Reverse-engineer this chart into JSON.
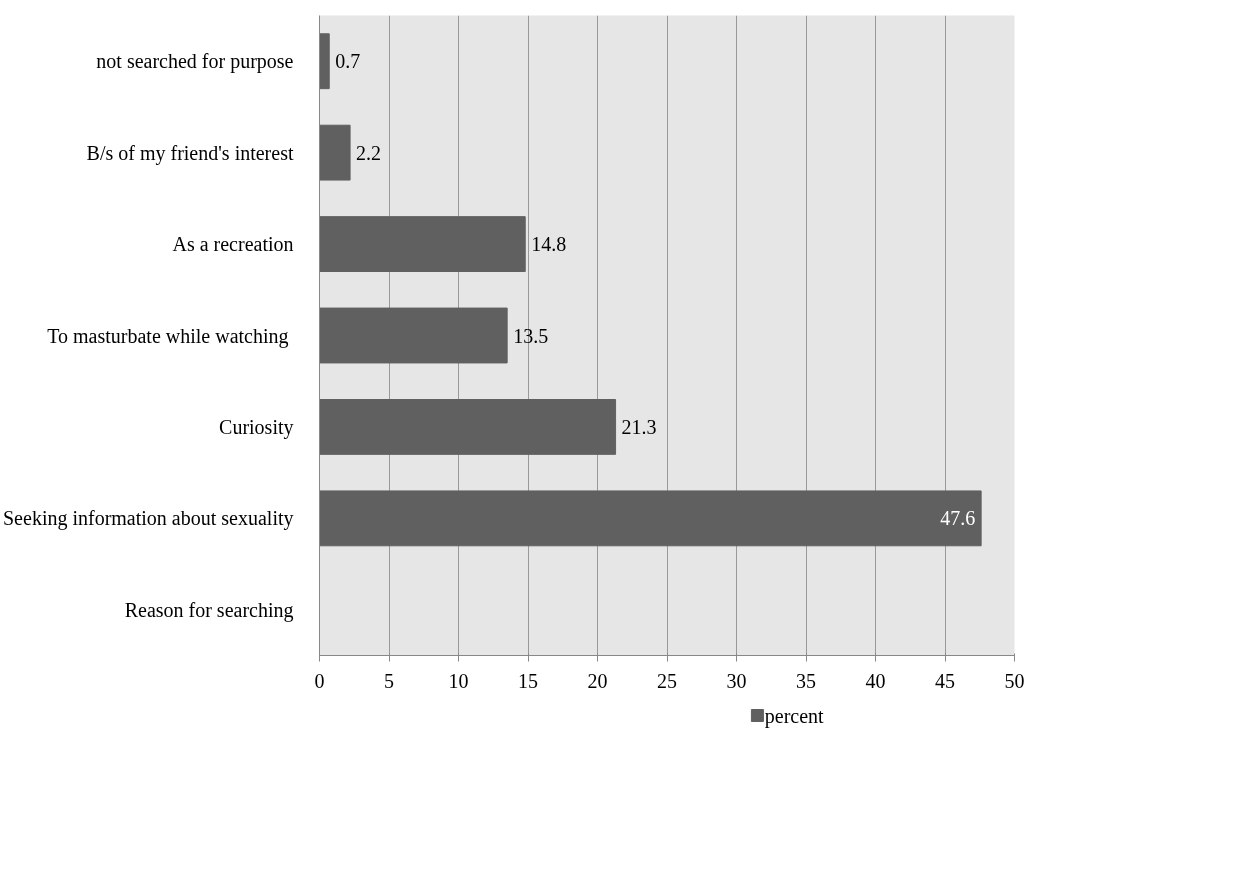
{
  "chart_data": {
    "type": "bar",
    "orientation": "horizontal",
    "categories": [
      "not searched for purpose",
      "B/s of my friend's interest",
      "As a recreation",
      "To masturbate while watching ",
      "Curiosity",
      "Seeking information about sexuality",
      "Reason for searching"
    ],
    "series": [
      {
        "name": "percent",
        "color": "#606060",
        "values": [
          0.7,
          2.2,
          14.8,
          13.5,
          21.3,
          47.6,
          null
        ]
      }
    ],
    "xlim": [
      0,
      50
    ],
    "xticks": [
      0,
      5,
      10,
      15,
      20,
      25,
      30,
      35,
      40,
      45,
      50
    ],
    "grid": "x",
    "legend": "bottom",
    "data_labels": true
  }
}
